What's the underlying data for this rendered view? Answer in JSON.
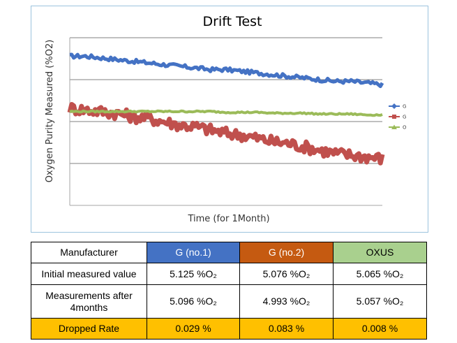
{
  "chart_data": {
    "type": "line",
    "title": "Drift Test",
    "xlabel": "Time (for 1Month)",
    "ylabel": "Oxygen Purity Measured (%O2)",
    "x_ticks_shown": false,
    "y_ticks_shown": false,
    "grid": "horizontal",
    "legend_position": "right",
    "x": [
      0,
      0.05,
      0.1,
      0.15,
      0.2,
      0.25,
      0.3,
      0.35,
      0.4,
      0.45,
      0.5,
      0.55,
      0.6,
      0.65,
      0.7,
      0.75,
      0.8,
      0.85,
      0.9,
      0.95,
      1.0
    ],
    "series": [
      {
        "name": "G",
        "color": "#4472c4",
        "marker": "diamond",
        "values": [
          0.89,
          0.89,
          0.88,
          0.87,
          0.86,
          0.85,
          0.84,
          0.83,
          0.82,
          0.81,
          0.81,
          0.8,
          0.79,
          0.78,
          0.77,
          0.76,
          0.75,
          0.74,
          0.74,
          0.73,
          0.72
        ]
      },
      {
        "name": "G",
        "color": "#c0504d",
        "marker": "square",
        "values": [
          0.58,
          0.57,
          0.56,
          0.55,
          0.53,
          0.52,
          0.5,
          0.48,
          0.47,
          0.45,
          0.43,
          0.42,
          0.4,
          0.38,
          0.37,
          0.35,
          0.33,
          0.31,
          0.3,
          0.29,
          0.28
        ]
      },
      {
        "name": "O",
        "color": "#9bbb59",
        "marker": "triangle",
        "values": [
          0.56,
          0.56,
          0.56,
          0.56,
          0.56,
          0.56,
          0.56,
          0.56,
          0.56,
          0.56,
          0.555,
          0.555,
          0.555,
          0.55,
          0.55,
          0.55,
          0.545,
          0.545,
          0.545,
          0.54,
          0.54
        ]
      }
    ]
  },
  "table": {
    "rows": [
      [
        "Manufacturer",
        "G (no.1)",
        "G (no.2)",
        "OXUS"
      ],
      [
        "Initial measured value",
        "5.125 %O₂",
        "5.076 %O₂",
        "5.065 %O₂"
      ],
      [
        "Measurements after 4months",
        "5.096 %O₂",
        "4.993 %O₂",
        "5.057 %O₂"
      ],
      [
        "Dropped Rate",
        "0.029 %",
        "0.083 %",
        "0.008 %"
      ]
    ]
  },
  "colors": {
    "g1_header": "#4472c4",
    "g2_header": "#c55a11",
    "oxus_header": "#a9d08e",
    "dropped_row": "#ffc000",
    "frame_border": "#9cc3de",
    "gridline": "#808080"
  }
}
